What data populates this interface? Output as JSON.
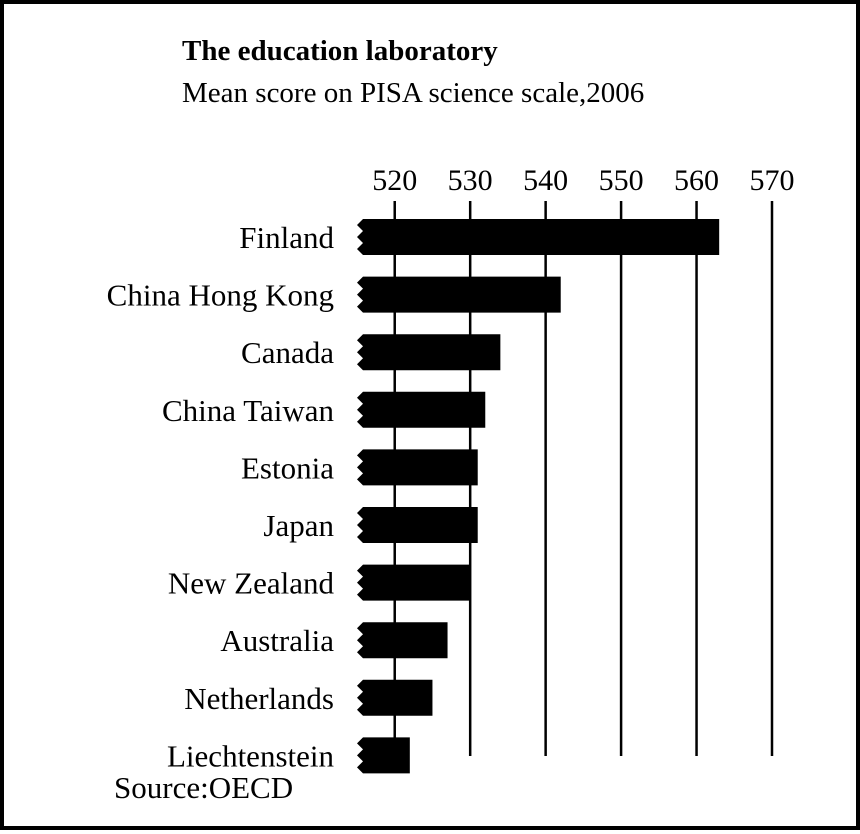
{
  "chart_data": {
    "type": "bar",
    "orientation": "horizontal",
    "title": "The education laboratory",
    "subtitle": "Mean score on PISA science scale,2006",
    "source": "Source:OECD",
    "categories": [
      "Finland",
      "China Hong Kong",
      "Canada",
      "China Taiwan",
      "Estonia",
      "Japan",
      "New Zealand",
      "Australia",
      "Netherlands",
      "Liechtenstein"
    ],
    "values": [
      563,
      542,
      534,
      532,
      531,
      531,
      530,
      527,
      525,
      522
    ],
    "x_ticks": [
      520,
      530,
      540,
      550,
      560,
      570
    ],
    "xlim": [
      515,
      570
    ],
    "axis_position": "top",
    "grid": true,
    "axis_break": true,
    "bar_color": "#000000"
  }
}
